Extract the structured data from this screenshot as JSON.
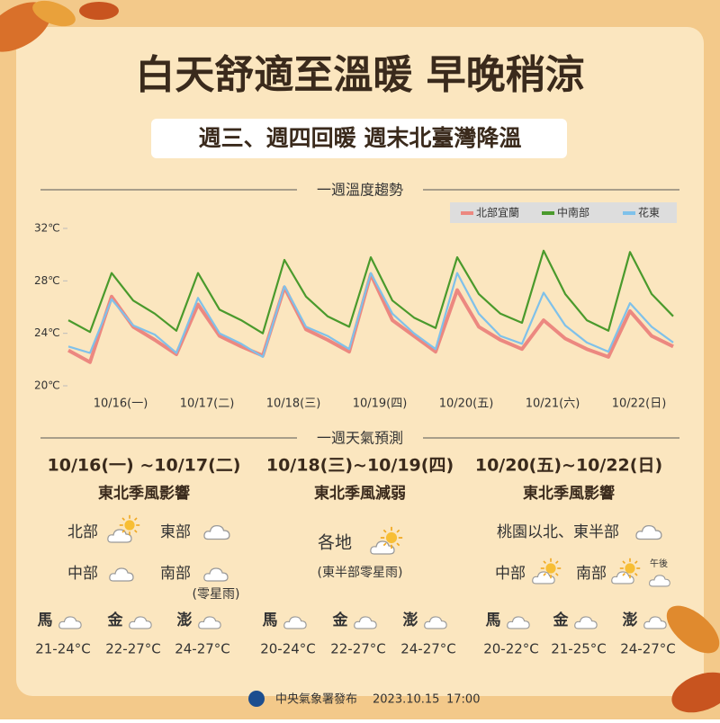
{
  "header": {
    "title": "白天舒適至溫暖 早晚稍涼",
    "subtitle": "週三、週四回暖  週末北臺灣降溫"
  },
  "chart_data": {
    "type": "line",
    "title": "一週溫度趨勢",
    "categories": [
      null,
      null,
      "10/16(一)",
      null,
      null,
      null,
      "10/17(二)",
      null,
      null,
      null,
      "10/18(三)",
      null,
      null,
      null,
      "10/19(四)",
      null,
      null,
      null,
      "10/20(五)",
      null,
      null,
      null,
      "10/21(六)",
      null,
      null,
      null,
      "10/22(日)",
      null,
      null
    ],
    "series": [
      {
        "name": "北部宜蘭",
        "color": "#ec8880",
        "values": [
          22.7,
          21.8,
          26.8,
          24.5,
          23.5,
          22.4,
          26.2,
          23.8,
          23.0,
          22.3,
          27.5,
          24.3,
          23.5,
          22.6,
          28.5,
          25.0,
          23.8,
          22.6,
          27.3,
          24.5,
          23.5,
          22.8,
          25.0,
          23.6,
          22.8,
          22.2,
          25.7,
          23.8,
          23.0
        ]
      },
      {
        "name": "中南部",
        "color": "#4a9a2c",
        "values": [
          25.0,
          24.1,
          28.6,
          26.5,
          25.5,
          24.2,
          28.6,
          25.8,
          25.0,
          24.0,
          29.6,
          26.8,
          25.3,
          24.5,
          29.8,
          26.5,
          25.2,
          24.4,
          29.8,
          27.0,
          25.5,
          24.8,
          30.3,
          27.0,
          25.0,
          24.2,
          30.2,
          27.0,
          25.3
        ]
      },
      {
        "name": "花東",
        "color": "#7fc1ea",
        "values": [
          23.0,
          22.5,
          26.6,
          24.6,
          23.9,
          22.5,
          26.7,
          24.0,
          23.2,
          22.2,
          27.6,
          24.5,
          23.8,
          22.8,
          28.6,
          25.5,
          24.0,
          22.8,
          28.6,
          25.5,
          23.8,
          23.2,
          27.1,
          24.6,
          23.3,
          22.6,
          26.3,
          24.5,
          23.3
        ]
      }
    ],
    "ylim": [
      20,
      32
    ],
    "yticks": [
      {
        "value": 20,
        "label": "20℃"
      },
      {
        "value": 24,
        "label": "24℃"
      },
      {
        "value": 28,
        "label": "28℃"
      },
      {
        "value": 32,
        "label": "32℃"
      }
    ],
    "grid": false,
    "legend": "top-right"
  },
  "forecast": {
    "title": "一週天氣預測",
    "periods": [
      {
        "date": "10/16(一) ~10/17(二)",
        "summary": "東北季風影響",
        "regions": [
          "北部",
          "東部",
          "中部",
          "南部"
        ],
        "note": "(零星雨)",
        "islands": [
          {
            "name": "馬",
            "temp": "21-24°C"
          },
          {
            "name": "金",
            "temp": "22-27°C"
          },
          {
            "name": "澎",
            "temp": "24-27°C"
          }
        ]
      },
      {
        "date": "10/18(三)~10/19(四)",
        "summary": "東北季風減弱",
        "regions": [
          "各地"
        ],
        "note": "(東半部零星雨)",
        "islands": [
          {
            "name": "馬",
            "temp": "20-24°C"
          },
          {
            "name": "金",
            "temp": "22-27°C"
          },
          {
            "name": "澎",
            "temp": "24-27°C"
          }
        ]
      },
      {
        "date": "10/20(五)~10/22(日)",
        "summary": "東北季風影響",
        "regions": [
          "桃園以北、東半部",
          "中部",
          "南部"
        ],
        "note": "午後",
        "islands": [
          {
            "name": "馬",
            "temp": "20-22°C"
          },
          {
            "name": "金",
            "temp": "21-25°C"
          },
          {
            "name": "澎",
            "temp": "24-27°C"
          }
        ]
      }
    ]
  },
  "footer": {
    "publisher": "中央氣象署發布",
    "date": "2023.10.15",
    "time": "17:00"
  }
}
